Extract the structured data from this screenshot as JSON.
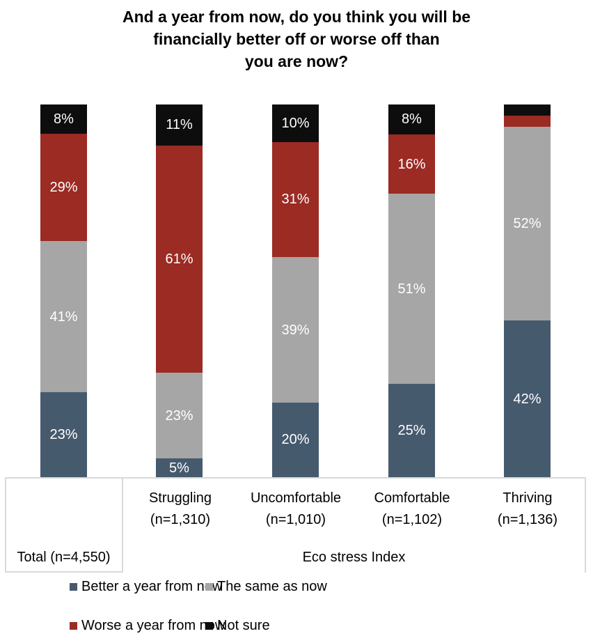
{
  "title": {
    "full_text": "And a year from now, do you think you will be financially better off or worse off than you are now?",
    "lines": [
      "And a year from now, do you think you will be",
      "financially better off or worse off than",
      "you are now?"
    ]
  },
  "chart_data": {
    "type": "bar",
    "stacked": true,
    "orientation": "vertical",
    "grid": false,
    "legend_position": "bottom",
    "title": "And a year from now, do you think you will be financially better off or worse off than you are now?",
    "categories": [
      "Total (n=4,550)",
      "Struggling (n=1,310)",
      "Uncomfortable (n=1,010)",
      "Comfortable (n=1,102)",
      "Thriving (n=1,136)"
    ],
    "series": [
      {
        "name": "Better a year from now",
        "color": "#465a6e",
        "values": [
          23,
          5,
          20,
          25,
          42
        ],
        "labels": [
          "23%",
          "5%",
          "20%",
          "25%",
          "42%"
        ]
      },
      {
        "name": "The same as now",
        "color": "#a6a6a6",
        "values": [
          41,
          23,
          39,
          51,
          52
        ],
        "labels": [
          "41%",
          "23%",
          "39%",
          "51%",
          "52%"
        ]
      },
      {
        "name": "Worse a year from now",
        "color": "#9b2b23",
        "values": [
          29,
          61,
          31,
          16,
          3
        ],
        "labels": [
          "29%",
          "61%",
          "31%",
          "16%",
          ""
        ]
      },
      {
        "name": "Not sure",
        "color": "#0d0d0d",
        "values": [
          8,
          11,
          10,
          8,
          3
        ],
        "labels": [
          "8%",
          "11%",
          "10%",
          "8%",
          ""
        ]
      }
    ],
    "value_unit": "%",
    "data_label_color": "#ffffff"
  },
  "axis": {
    "columns": [
      {
        "line1": "Struggling",
        "line2": "(n=1,310)"
      },
      {
        "line1": "Uncomfortable",
        "line2": "(n=1,010)"
      },
      {
        "line1": "Comfortable",
        "line2": "(n=1,102)"
      },
      {
        "line1": "Thriving",
        "line2": "(n=1,136)"
      }
    ],
    "group_labels": {
      "total": "Total (n=4,550)",
      "eco": "Eco stress Index"
    },
    "line_color": "#d9d9d9"
  },
  "legend": {
    "items": [
      {
        "label": "Better a year from now",
        "color": "#465a6e"
      },
      {
        "label": "The same as now",
        "color": "#a6a6a6"
      },
      {
        "label": "Worse a year from now",
        "color": "#9b2b23"
      },
      {
        "label": "Not sure",
        "color": "#0d0d0d"
      }
    ]
  }
}
